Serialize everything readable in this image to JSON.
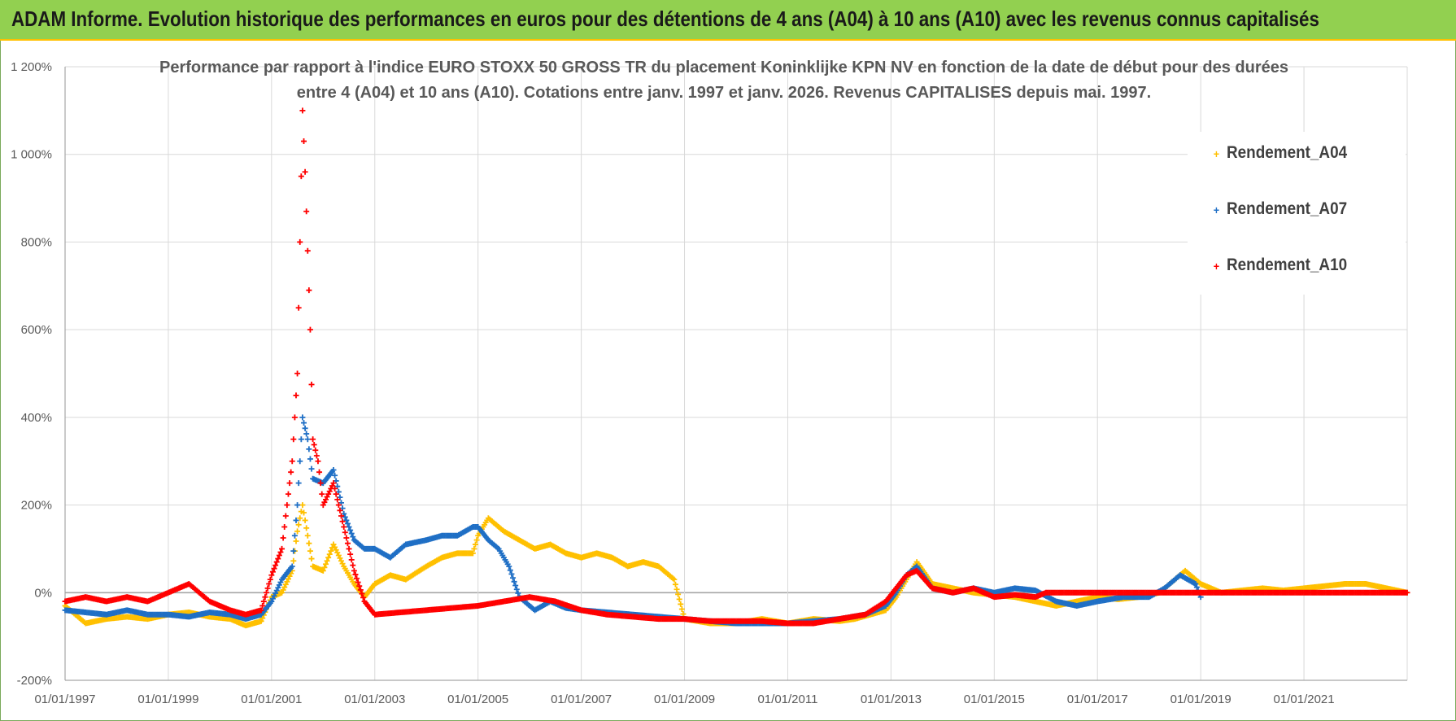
{
  "banner": {
    "text": "ADAM Informe. Evolution historique des performances en euros pour des détentions de 4 ans (A04) à 10 ans (A10) avec les revenus connus capitalisés"
  },
  "chart_data": {
    "type": "scatter",
    "title_line1": "Performance par rapport à l'indice EURO STOXX 50 GROSS TR  du placement Koninklijke KPN NV en fonction de la date de début pour des durées",
    "title_line2": "entre 4 (A04) et 10 ans (A10).  Cotations entre janv. 1997 et janv. 2026. Revenus CAPITALISES depuis mai. 1997.",
    "xlabel": "",
    "ylabel": "",
    "x_start": "01/01/1997",
    "x_end": "01/01/2023",
    "ylim": [
      -200,
      1200
    ],
    "y_ticks": [
      {
        "value": 1200,
        "label": "1 200%"
      },
      {
        "value": 1000,
        "label": "1 000%"
      },
      {
        "value": 800,
        "label": "800%"
      },
      {
        "value": 600,
        "label": "600%"
      },
      {
        "value": 400,
        "label": "400%"
      },
      {
        "value": 200,
        "label": "200%"
      },
      {
        "value": 0,
        "label": "0%"
      },
      {
        "value": -200,
        "label": "-200%"
      }
    ],
    "x_ticks": [
      "01/01/1997",
      "01/01/1999",
      "01/01/2001",
      "01/01/2003",
      "01/01/2005",
      "01/01/2007",
      "01/01/2009",
      "01/01/2011",
      "01/01/2013",
      "01/01/2015",
      "01/01/2017",
      "01/01/2019",
      "01/01/2021"
    ],
    "grid": true,
    "legend_position": "top-right",
    "series": [
      {
        "name": "Rendement_A04",
        "color": "#ffc000",
        "x": [
          1997.0,
          1997.4,
          1997.8,
          1998.2,
          1998.6,
          1999.0,
          1999.4,
          1999.8,
          2000.2,
          2000.5,
          2000.8,
          2001.0,
          2001.2,
          2001.4,
          2001.5,
          2001.6,
          2001.8,
          2002.0,
          2002.2,
          2002.4,
          2002.6,
          2002.8,
          2003.0,
          2003.3,
          2003.6,
          2004.0,
          2004.3,
          2004.6,
          2004.9,
          2005.0,
          2005.2,
          2005.5,
          2005.8,
          2006.1,
          2006.4,
          2006.7,
          2007.0,
          2007.3,
          2007.6,
          2007.9,
          2008.2,
          2008.5,
          2008.8,
          2009.0,
          2009.5,
          2010.0,
          2010.5,
          2011.0,
          2011.5,
          2012.0,
          2012.3,
          2012.6,
          2012.9,
          2013.1,
          2013.3,
          2013.5,
          2013.8,
          2014.2,
          2014.6,
          2015.0,
          2015.4,
          2015.8,
          2016.2,
          2016.6,
          2017.0,
          2017.4,
          2017.8,
          2018.2,
          2018.5,
          2018.7,
          2019.0,
          2019.4,
          2019.8,
          2020.2,
          2020.6,
          2021.0,
          2021.4,
          2021.8,
          2022.2,
          2022.6,
          2023.0
        ],
        "y": [
          -30,
          -70,
          -60,
          -55,
          -60,
          -50,
          -45,
          -55,
          -60,
          -75,
          -65,
          -10,
          0,
          50,
          140,
          200,
          60,
          50,
          110,
          60,
          20,
          -10,
          20,
          40,
          30,
          60,
          80,
          90,
          90,
          130,
          170,
          140,
          120,
          100,
          110,
          90,
          80,
          90,
          80,
          60,
          70,
          60,
          30,
          -60,
          -70,
          -70,
          -60,
          -70,
          -60,
          -65,
          -60,
          -50,
          -40,
          -10,
          30,
          70,
          20,
          10,
          0,
          -5,
          -10,
          -20,
          -30,
          -20,
          -10,
          -15,
          -10,
          0,
          30,
          50,
          20,
          0,
          5,
          10,
          5,
          10,
          15,
          20,
          20,
          10,
          0
        ]
      },
      {
        "name": "Rendement_A07",
        "color": "#1f6fc5",
        "x": [
          1997.0,
          1997.4,
          1997.8,
          1998.2,
          1998.6,
          1999.0,
          1999.4,
          1999.8,
          2000.2,
          2000.5,
          2000.8,
          2001.0,
          2001.2,
          2001.4,
          2001.5,
          2001.6,
          2001.7,
          2001.8,
          2002.0,
          2002.2,
          2002.4,
          2002.6,
          2002.8,
          2003.0,
          2003.3,
          2003.6,
          2004.0,
          2004.3,
          2004.6,
          2004.9,
          2005.0,
          2005.2,
          2005.4,
          2005.6,
          2005.8,
          2006.1,
          2006.4,
          2006.7,
          2007.0,
          2007.5,
          2008.0,
          2008.5,
          2009.0,
          2009.5,
          2010.0,
          2010.5,
          2011.0,
          2011.5,
          2012.0,
          2012.5,
          2012.9,
          2013.1,
          2013.3,
          2013.5,
          2013.8,
          2014.2,
          2014.6,
          2015.0,
          2015.4,
          2015.8,
          2016.2,
          2016.6,
          2017.0,
          2017.5,
          2018.0,
          2018.3,
          2018.6,
          2018.9,
          2019.0
        ],
        "y": [
          -40,
          -45,
          -50,
          -40,
          -50,
          -50,
          -55,
          -45,
          -50,
          -60,
          -50,
          -20,
          30,
          60,
          200,
          400,
          350,
          260,
          250,
          280,
          180,
          120,
          100,
          100,
          80,
          110,
          120,
          130,
          130,
          150,
          150,
          120,
          100,
          60,
          -10,
          -40,
          -20,
          -35,
          -40,
          -45,
          -50,
          -55,
          -60,
          -65,
          -70,
          -70,
          -70,
          -65,
          -60,
          -50,
          -30,
          0,
          40,
          60,
          10,
          0,
          10,
          0,
          10,
          5,
          -20,
          -30,
          -20,
          -10,
          -10,
          10,
          40,
          20,
          -10
        ]
      },
      {
        "name": "Rendement_A10",
        "color": "#ff0000",
        "x": [
          1997.0,
          1997.4,
          1997.8,
          1998.2,
          1998.6,
          1999.0,
          1999.4,
          1999.8,
          2000.2,
          2000.5,
          2000.8,
          2001.0,
          2001.2,
          2001.4,
          2001.5,
          2001.6,
          2001.65,
          2001.7,
          2001.75,
          2001.8,
          2001.9,
          2002.0,
          2002.2,
          2002.4,
          2002.6,
          2002.8,
          2003.0,
          2003.5,
          2004.0,
          2004.5,
          2005.0,
          2005.5,
          2006.0,
          2006.5,
          2007.0,
          2007.5,
          2008.0,
          2008.5,
          2009.0,
          2009.5,
          2010.0,
          2010.5,
          2011.0,
          2011.5,
          2012.0,
          2012.5,
          2012.9,
          2013.1,
          2013.3,
          2013.5,
          2013.8,
          2014.2,
          2014.6,
          2015.0,
          2015.4,
          2015.8,
          2016.0,
          2016.4,
          2016.8,
          2017.2,
          2017.6,
          2018.0,
          2018.4,
          2018.8,
          2019.2,
          2019.6,
          2020.0,
          2020.4,
          2020.8,
          2021.2,
          2021.6,
          2022.0,
          2022.4,
          2022.8,
          2023.0
        ],
        "y": [
          -20,
          -10,
          -20,
          -10,
          -20,
          0,
          20,
          -20,
          -40,
          -50,
          -40,
          40,
          100,
          300,
          500,
          1100,
          960,
          780,
          600,
          350,
          300,
          200,
          250,
          150,
          50,
          -20,
          -50,
          -45,
          -40,
          -35,
          -30,
          -20,
          -10,
          -20,
          -40,
          -50,
          -55,
          -60,
          -60,
          -65,
          -65,
          -65,
          -70,
          -70,
          -60,
          -50,
          -20,
          10,
          40,
          50,
          10,
          0,
          10,
          -10,
          -5,
          -10,
          0,
          0,
          0,
          0,
          0,
          0,
          0,
          0,
          0,
          0,
          0,
          0,
          0,
          0,
          0,
          0,
          0,
          0,
          0
        ]
      }
    ]
  }
}
